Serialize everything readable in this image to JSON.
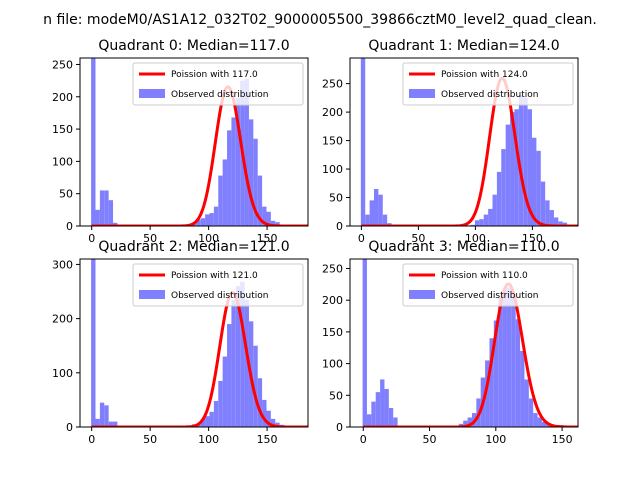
{
  "chart_data": {
    "type": "bar",
    "suptitle": "n file: modeM0/AS1A12_032T02_9000005500_39866cztM0_level2_quad_clean.",
    "colors": {
      "hist": "#8080ff",
      "poisson": "#ff0000",
      "frame": "#000000"
    },
    "legend_placement": "upper right",
    "grid": false,
    "panels": [
      {
        "title": "Quadrant 0: Median=117.0",
        "legend": [
          "Poission with 117.0",
          "Observed distribution"
        ],
        "mean": 117,
        "xlim": [
          -10,
          185
        ],
        "ylim": [
          0,
          260
        ],
        "xticks": [
          0,
          50,
          100,
          150
        ],
        "yticks": [
          0,
          50,
          100,
          150,
          200,
          250
        ],
        "bins_start": -0.5,
        "bin_width": 3.75,
        "counts": [
          260,
          25,
          55,
          55,
          40,
          5,
          0,
          0,
          0,
          0,
          0,
          0,
          0,
          0,
          0,
          0,
          0,
          0,
          0,
          0,
          0,
          0,
          2,
          5,
          10,
          12,
          18,
          20,
          30,
          78,
          103,
          148,
          168,
          198,
          225,
          228,
          165,
          135,
          78,
          30,
          22,
          8,
          6,
          2,
          1,
          0,
          1
        ]
      },
      {
        "title": "Quadrant 1: Median=124.0",
        "legend": [
          "Poission with 124.0",
          "Observed distribution"
        ],
        "mean": 124,
        "xlim": [
          -10,
          190
        ],
        "ylim": [
          0,
          295
        ],
        "xticks": [
          0,
          50,
          100,
          150
        ],
        "yticks": [
          0,
          50,
          100,
          150,
          200,
          250
        ],
        "bins_start": -0.5,
        "bin_width": 3.85,
        "counts": [
          295,
          20,
          45,
          65,
          55,
          20,
          5,
          0,
          0,
          0,
          0,
          0,
          0,
          0,
          0,
          0,
          0,
          0,
          0,
          0,
          0,
          0,
          0,
          0,
          1,
          2,
          10,
          12,
          20,
          30,
          55,
          95,
          135,
          178,
          200,
          205,
          230,
          225,
          205,
          155,
          132,
          78,
          45,
          28,
          15,
          8,
          6,
          2
        ]
      },
      {
        "title": "Quadrant 2: Median=121.0",
        "legend": [
          "Poission with 121.0",
          "Observed distribution"
        ],
        "mean": 121,
        "xlim": [
          -10,
          185
        ],
        "ylim": [
          0,
          310
        ],
        "xticks": [
          0,
          50,
          100,
          150
        ],
        "yticks": [
          0,
          100,
          200,
          300
        ],
        "bins_start": -0.5,
        "bin_width": 3.75,
        "counts": [
          310,
          15,
          45,
          40,
          10,
          10,
          0,
          0,
          0,
          0,
          0,
          0,
          0,
          0,
          0,
          0,
          0,
          0,
          0,
          0,
          0,
          0,
          0,
          5,
          5,
          15,
          20,
          28,
          48,
          85,
          130,
          190,
          235,
          260,
          268,
          235,
          195,
          150,
          90,
          50,
          30,
          15,
          8,
          4,
          2,
          1,
          1
        ]
      },
      {
        "title": "Quadrant 3: Median=110.0",
        "legend": [
          "Poission with 110.0",
          "Observed distribution"
        ],
        "mean": 110,
        "xlim": [
          -10,
          162
        ],
        "ylim": [
          0,
          265
        ],
        "xticks": [
          0,
          50,
          100,
          150
        ],
        "yticks": [
          0,
          50,
          100,
          150,
          200,
          250
        ],
        "bins_start": -0.5,
        "bin_width": 3.3,
        "counts": [
          265,
          20,
          40,
          55,
          75,
          60,
          30,
          15,
          0,
          0,
          0,
          0,
          0,
          0,
          0,
          0,
          0,
          0,
          0,
          0,
          1,
          2,
          5,
          10,
          15,
          22,
          45,
          78,
          105,
          140,
          168,
          205,
          218,
          220,
          205,
          170,
          120,
          75,
          45,
          22,
          15,
          8,
          4,
          2,
          1,
          3
        ]
      }
    ]
  }
}
